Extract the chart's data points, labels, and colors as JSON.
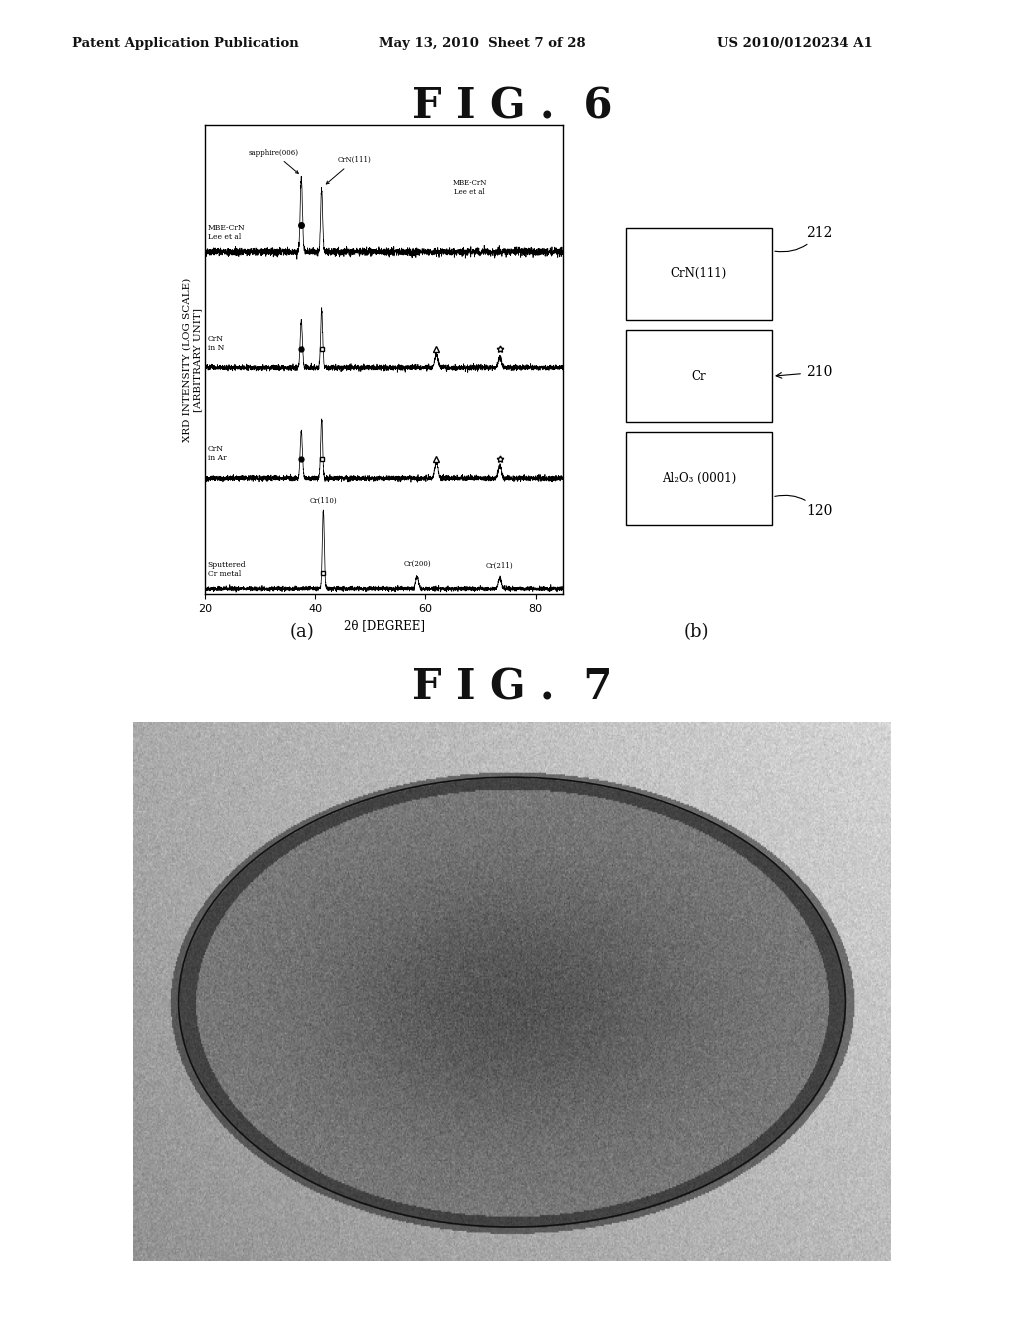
{
  "page_title": "Patent Application Publication",
  "page_date": "May 13, 2010  Sheet 7 of 28",
  "page_number": "US 2010/0120234 A1",
  "fig6_title": "F I G .  6",
  "fig7_title": "F I G .  7",
  "fig_a_label": "(a)",
  "fig_b_label": "(b)",
  "xrd_ylabel": "XRD INTENSITY (LOG SCALE)\n[ARBITRARY UNIT]",
  "xrd_xlabel": "2θ [DEGREE]",
  "xrd_xticks": [
    20,
    40,
    60,
    80
  ],
  "curve_labels_top_to_bot": [
    "MBE-CrN\nLee et al",
    "CrN\nin N",
    "CrN\nin Ar",
    "Sputtered\nCr metal"
  ],
  "layer_labels": [
    "CrN(111)",
    "Cr",
    "Al₂O₃ (0001)"
  ],
  "layer_numbers": [
    "212",
    "210",
    "120"
  ],
  "background_color": "#ffffff",
  "sapphire_label": "sapphire(006)",
  "crn111_label": "CrN(111)",
  "cr110_label": "Cr(110)",
  "cr200_label": "Cr(200)",
  "cr211_label": "Cr(211)"
}
